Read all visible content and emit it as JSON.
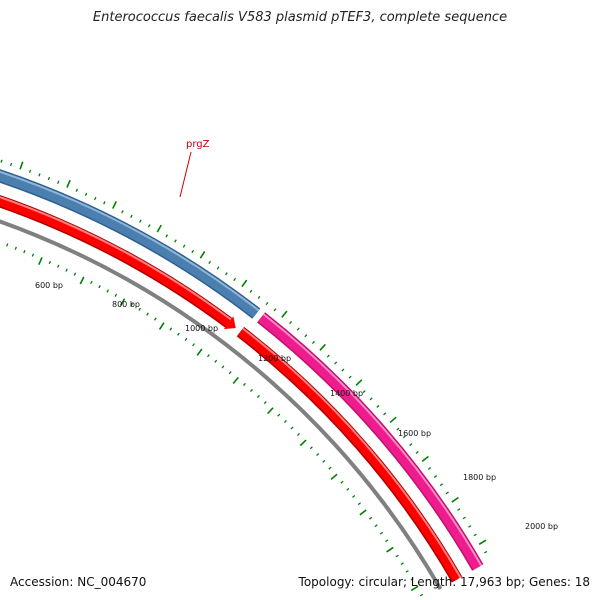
{
  "title": "Enterococcus faecalis V583 plasmid pTEF3, complete sequence",
  "footer": {
    "accession": "Accession: NC_004670",
    "summary": "Topology: circular; Length: 17,963 bp; Genes: 18"
  },
  "map": {
    "gene_label": "prgZ",
    "tick_labels": [
      "600 bp",
      "800 bp",
      "1000 bp",
      "1200 bp",
      "1400 bp",
      "1600 bp",
      "1800 bp",
      "2000 bp"
    ],
    "colors": {
      "blue_gene": "#4a7fb0",
      "pink_gene": "#ee1c8c",
      "red_gene": "#ff0000",
      "backbone": "#808080",
      "ticks": "#008000",
      "label_line": "#cc0000"
    }
  }
}
